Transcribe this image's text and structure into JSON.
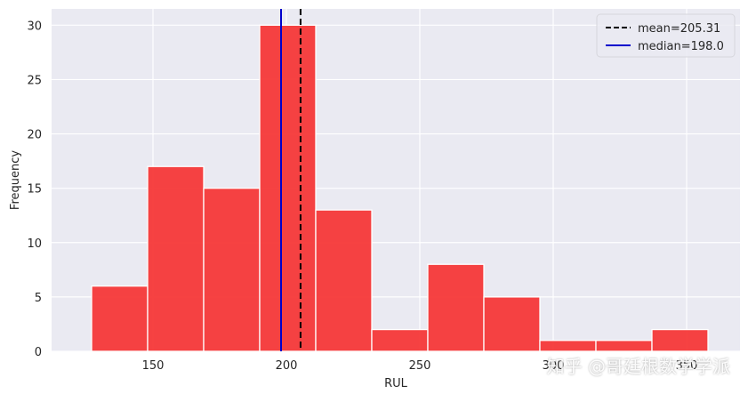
{
  "chart_data": {
    "type": "bar",
    "subtype": "histogram",
    "bin_edges": [
      127,
      148,
      169,
      190,
      211,
      232,
      253,
      274,
      295,
      316,
      337,
      358
    ],
    "values": [
      6,
      17,
      15,
      30,
      13,
      2,
      8,
      5,
      1,
      1,
      2
    ],
    "xlabel": "RUL",
    "ylabel": "Frequency",
    "xlim": [
      112,
      370
    ],
    "ylim": [
      0,
      31.5
    ],
    "xticks": [
      150,
      200,
      250,
      300,
      350
    ],
    "yticks": [
      0,
      5,
      10,
      15,
      20,
      25,
      30
    ],
    "bar_color": "#f53838",
    "grid": true,
    "background": "#eaeaf2",
    "legend_position": "top-right",
    "reference_lines": [
      {
        "label": "mean=205.31",
        "value": 205.31,
        "style": "dashed",
        "color": "#000000"
      },
      {
        "label": "median=198.0",
        "value": 198.0,
        "style": "solid",
        "color": "#0000cc"
      }
    ]
  },
  "watermark": "知乎 @哥廷根数学学派"
}
